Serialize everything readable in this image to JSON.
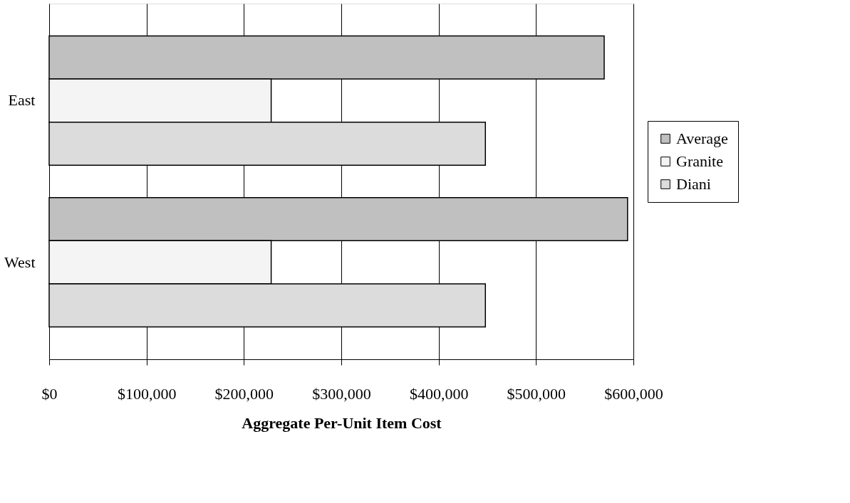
{
  "chart_data": {
    "type": "bar",
    "orientation": "horizontal",
    "xlabel": "Aggregate Per-Unit Item Cost",
    "categories": [
      "East",
      "West"
    ],
    "series": [
      {
        "name": "Average",
        "color": "#c0c0c0",
        "values": [
          570000,
          594000
        ]
      },
      {
        "name": "Granite",
        "color": "#f4f4f4",
        "values": [
          228000,
          228000
        ]
      },
      {
        "name": "Diani",
        "color": "#dcdcdc",
        "values": [
          448000,
          448000
        ]
      }
    ],
    "xlim": [
      0,
      600000
    ],
    "xticks": [
      {
        "value": 0,
        "label": "$0"
      },
      {
        "value": 100000,
        "label": "$100,000"
      },
      {
        "value": 200000,
        "label": "$200,000"
      },
      {
        "value": 300000,
        "label": "$300,000"
      },
      {
        "value": 400000,
        "label": "$400,000"
      },
      {
        "value": 500000,
        "label": "$500,000"
      },
      {
        "value": 600000,
        "label": "$600,000"
      }
    ],
    "grid": "x",
    "legend": "right"
  }
}
